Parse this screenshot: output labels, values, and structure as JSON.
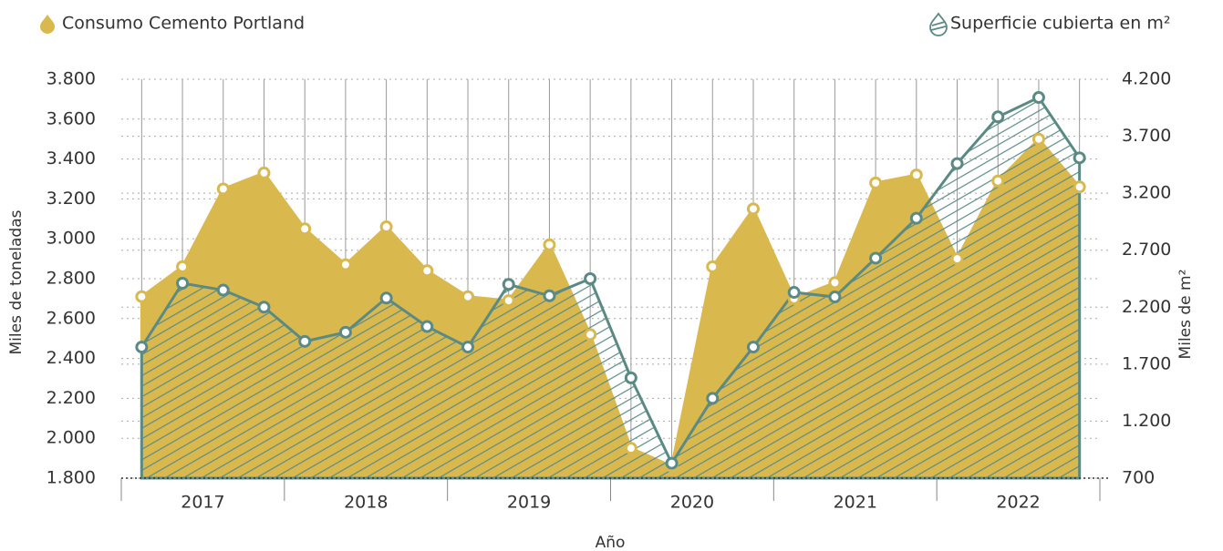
{
  "chart_data": {
    "type": "area",
    "categories": [
      null,
      null,
      null,
      null,
      null,
      null,
      null,
      null,
      null,
      null,
      null,
      null,
      null,
      null,
      null,
      null,
      null,
      null,
      null,
      null,
      null,
      null,
      null,
      null
    ],
    "years": [
      "2017",
      "2018",
      "2019",
      "2020",
      "2021",
      "2022"
    ],
    "x_label": "Año",
    "y_label": "Miles de toneladas",
    "y2_label": "Miles de m²",
    "ylim": [
      1800,
      3800
    ],
    "yticks": [
      {
        "value": 1800,
        "label": "1.800"
      },
      {
        "value": 2000,
        "label": "2.000"
      },
      {
        "value": 2200,
        "label": "2.200"
      },
      {
        "value": 2400,
        "label": "2.400"
      },
      {
        "value": 2600,
        "label": "2.600"
      },
      {
        "value": 2800,
        "label": "2.800"
      },
      {
        "value": 3000,
        "label": "3.000"
      },
      {
        "value": 3200,
        "label": "3.200"
      },
      {
        "value": 3400,
        "label": "3.400"
      },
      {
        "value": 3600,
        "label": "3.600"
      },
      {
        "value": 3800,
        "label": "3.800"
      }
    ],
    "y2lim": [
      700,
      4200
    ],
    "y2ticks": [
      700,
      {
        "value": 1200,
        "label": "1.200"
      },
      {
        "value": 1700,
        "label": "1.700"
      },
      {
        "value": 2200,
        "label": "2.200"
      },
      {
        "value": 2700,
        "label": "2.700"
      },
      {
        "value": 3200,
        "label": "3.200"
      },
      {
        "value": 3700,
        "label": "3.700"
      },
      {
        "value": 4200,
        "label": "4.200"
      }
    ],
    "grid": true,
    "series": [
      {
        "name": "Consumo Cemento Portland",
        "color": "#d9b94e",
        "values": [
          2710,
          2860,
          3250,
          3330,
          3050,
          2870,
          3060,
          2840,
          2710,
          2690,
          2970,
          2520,
          1950,
          1860,
          2860,
          3150,
          2700,
          2780,
          3280,
          3320,
          2900,
          3290,
          3500,
          3260
        ]
      },
      {
        "name": "Superficie cubierta en m²",
        "color": "#5b8a85",
        "axis": "y2",
        "hatched": true,
        "values": [
          1850,
          2410,
          2350,
          2200,
          1900,
          1980,
          2280,
          2030,
          1850,
          2400,
          2300,
          2450,
          1580,
          830,
          1400,
          1850,
          2330,
          2290,
          2630,
          2980,
          3460,
          3870,
          4040,
          3510
        ]
      }
    ]
  }
}
